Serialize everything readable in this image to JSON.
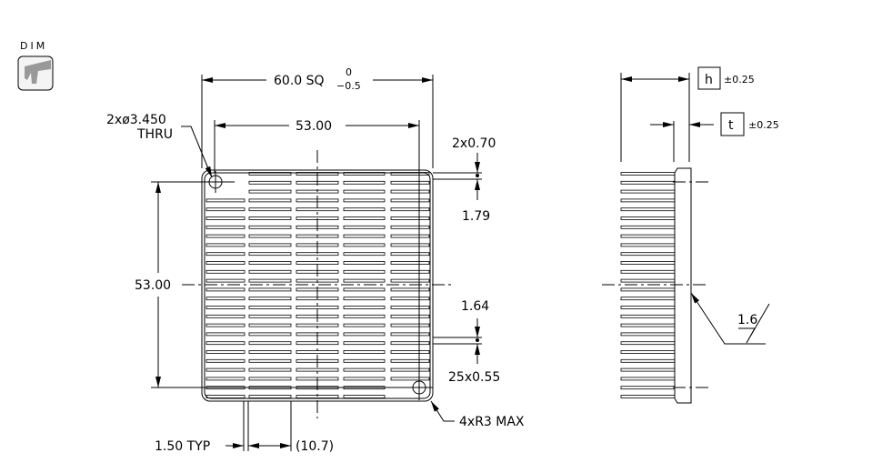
{
  "toolbar": {
    "dim_label": "DIM",
    "dim_icon": "caliper-icon"
  },
  "front_view": {
    "overall_size": "60.0 SQ",
    "overall_tol_upper": "0",
    "overall_tol_lower": "−0.5",
    "hole_spacing_h": "53.00",
    "hole_spacing_v": "53.00",
    "hole_note_1": "2xø3.450",
    "hole_note_2": "THRU",
    "fin_pitch_top": "2x0.70",
    "edge_dim": "1.79",
    "pitch": "1.64",
    "fin_thickness": "25x0.55",
    "corner_radius": "4xR3 MAX",
    "gap_typ": "1.50 TYP",
    "segment_length": "(10.7)"
  },
  "side_view": {
    "height_label": "h",
    "height_tol": "±0.25",
    "thickness_label": "t",
    "thickness_tol": "±0.25",
    "surface_finish": "1.6"
  },
  "colors": {
    "line": "#000000",
    "icon_bg": "#f4f4f4",
    "icon_glyph": "#999999"
  }
}
